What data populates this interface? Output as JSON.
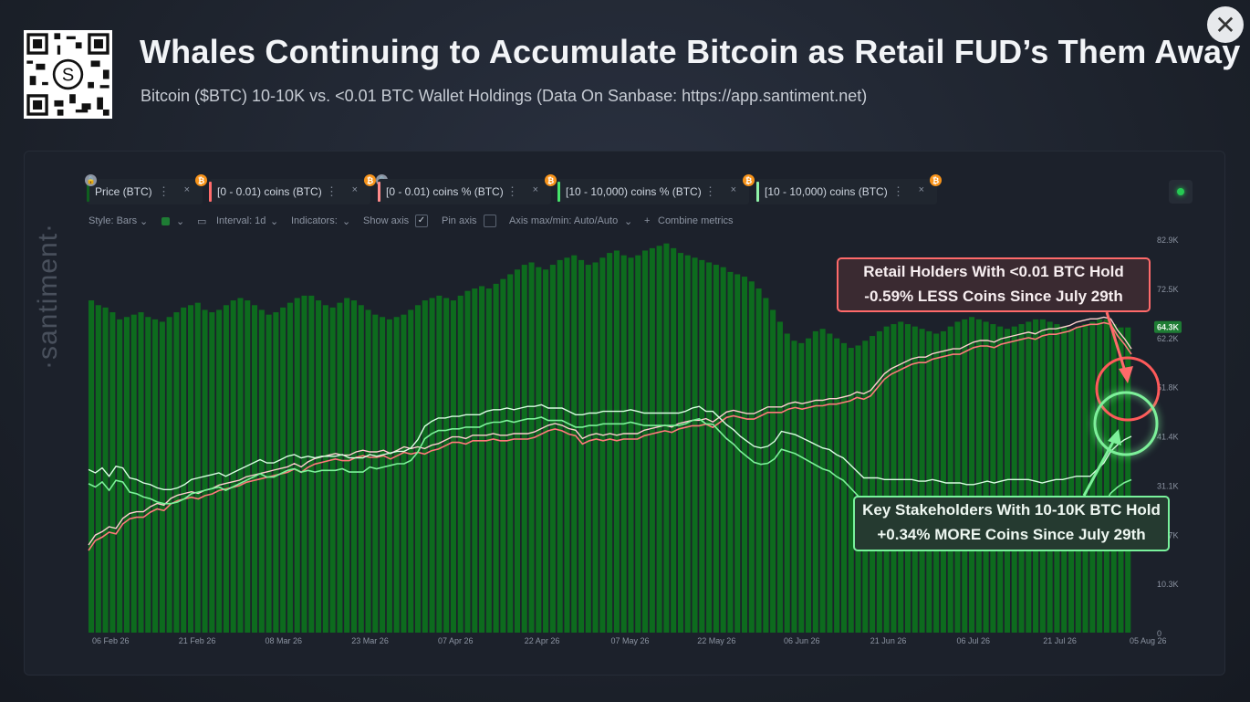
{
  "header": {
    "title": "Whales Continuing to Accumulate Bitcoin as Retail FUD’s Them Away",
    "subtitle": "Bitcoin ($BTC) 10-10K vs. <0.01 BTC Wallet Holdings (Data On Sanbase: https://app.santiment.net)",
    "close_label": "✕",
    "qr_center": "S"
  },
  "watermark": "·santiment·",
  "metrics": [
    {
      "label": "Price (BTC)",
      "color": "#0f5f1f",
      "locked": true
    },
    {
      "label": "[0 - 0.01) coins (BTC)",
      "color": "#ff6b6b",
      "locked": false
    },
    {
      "label": "[0 - 0.01) coins % (BTC)",
      "color": "#ff8a8a",
      "locked": true
    },
    {
      "label": "[10 - 10,000) coins % (BTC)",
      "color": "#46e36a",
      "locked": false
    },
    {
      "label": "[10 - 10,000) coins (BTC)",
      "color": "#8ff2a8",
      "locked": false
    }
  ],
  "options": {
    "style": "Style: Bars",
    "interval": "Interval: 1d",
    "indicators": "Indicators:",
    "show_axis": "Show axis",
    "pin_axis": "Pin axis",
    "axis_range": "Axis max/min: Auto/Auto",
    "combine": "Combine metrics"
  },
  "annotations": {
    "retail_line1": "Retail Holders With <0.01 BTC Hold",
    "retail_line2": "-0.59% LESS Coins Since July 29th",
    "whale_line1": "Key Stakeholders With 10-10K BTC Hold",
    "whale_line2": "+0.34% MORE Coins Since July 29th"
  },
  "colors": {
    "price_bars": "#0d6b1e",
    "retail": "#ff7a7a",
    "whale": "#7df09a",
    "price_tag": "#1e7c34"
  },
  "chart_data": {
    "type": "bar",
    "x_ticks": [
      "06 Feb 26",
      "21 Feb 26",
      "08 Mar 26",
      "23 Mar 26",
      "07 Apr 26",
      "22 Apr 26",
      "07 May 26",
      "22 May 26",
      "06 Jun 26",
      "21 Jun 26",
      "06 Jul 26",
      "21 Jul 26",
      "05 Aug 26"
    ],
    "y_ticks": [
      "82.9K",
      "72.5K",
      "62.2K",
      "51.8K",
      "41.4K",
      "31.1K",
      "20.7K",
      "10.3K",
      "0"
    ],
    "ylim": [
      0,
      82900
    ],
    "price_tag": "64.3K",
    "price_series": {
      "name": "Price (BTC)",
      "values": [
        70000,
        69000,
        68500,
        67500,
        66000,
        66500,
        67000,
        67500,
        66500,
        66000,
        65500,
        66500,
        67500,
        68500,
        69000,
        69500,
        68000,
        67500,
        68000,
        69000,
        70000,
        70500,
        70000,
        69000,
        68000,
        67000,
        67500,
        68500,
        69500,
        70500,
        71000,
        71000,
        70000,
        69000,
        68500,
        69500,
        70500,
        70000,
        69000,
        68000,
        67000,
        66500,
        66000,
        66500,
        67000,
        68000,
        69000,
        70000,
        70500,
        71000,
        70500,
        70000,
        71000,
        72000,
        72500,
        73000,
        72500,
        73500,
        74500,
        75500,
        76500,
        77500,
        78000,
        77000,
        76500,
        77500,
        78500,
        79000,
        79500,
        78500,
        77500,
        78000,
        79000,
        80000,
        80500,
        79500,
        79000,
        79500,
        80500,
        81000,
        81500,
        82000,
        81000,
        80000,
        79500,
        79000,
        78500,
        78000,
        77500,
        77000,
        76000,
        75500,
        75000,
        74000,
        72500,
        70500,
        68000,
        65500,
        63000,
        61500,
        61000,
        62000,
        63500,
        64000,
        63000,
        62000,
        61000,
        60000,
        60500,
        61500,
        62500,
        63500,
        64500,
        65000,
        65500,
        65000,
        64500,
        64000,
        63500,
        63000,
        63500,
        64500,
        65500,
        66000,
        66500,
        66000,
        65500,
        65000,
        64500,
        64000,
        64500,
        65000,
        65500,
        66000,
        66000,
        65500,
        65000,
        64500,
        64000,
        64500,
        65000,
        65500,
        66000,
        66000,
        65000,
        64300,
        64300
      ]
    },
    "series": [
      {
        "name": "[0 - 0.01) coins (BTC)",
        "values": [
          0.0,
          0.06,
          0.08,
          0.11,
          0.1,
          0.16,
          0.19,
          0.2,
          0.2,
          0.23,
          0.25,
          0.24,
          0.28,
          0.3,
          0.31,
          0.32,
          0.31,
          0.33,
          0.34,
          0.36,
          0.37,
          0.38,
          0.39,
          0.41,
          0.42,
          0.43,
          0.44,
          0.45,
          0.46,
          0.47,
          0.49,
          0.47,
          0.5,
          0.52,
          0.53,
          0.54,
          0.55,
          0.54,
          0.54,
          0.56,
          0.57,
          0.56,
          0.56,
          0.57,
          0.55,
          0.57,
          0.59,
          0.58,
          0.59,
          0.58,
          0.6,
          0.61,
          0.63,
          0.65,
          0.65,
          0.64,
          0.66,
          0.66,
          0.66,
          0.67,
          0.66,
          0.66,
          0.67,
          0.67,
          0.67,
          0.68,
          0.7,
          0.72,
          0.73,
          0.72,
          0.7,
          0.69,
          0.64,
          0.66,
          0.67,
          0.66,
          0.67,
          0.66,
          0.67,
          0.67,
          0.67,
          0.69,
          0.7,
          0.71,
          0.72,
          0.71,
          0.73,
          0.74,
          0.75,
          0.75,
          0.76,
          0.74,
          0.77,
          0.8,
          0.81,
          0.8,
          0.79,
          0.79,
          0.81,
          0.83,
          0.83,
          0.83,
          0.85,
          0.86,
          0.85,
          0.86,
          0.87,
          0.87,
          0.88,
          0.88,
          0.89,
          0.9,
          0.92,
          0.91,
          0.93,
          0.98,
          1.03,
          1.06,
          1.08,
          1.1,
          1.12,
          1.13,
          1.13,
          1.15,
          1.16,
          1.17,
          1.18,
          1.18,
          1.2,
          1.22,
          1.23,
          1.23,
          1.22,
          1.24,
          1.25,
          1.26,
          1.27,
          1.28,
          1.27,
          1.29,
          1.3,
          1.3,
          1.31,
          1.32,
          1.34,
          1.35,
          1.36,
          1.36,
          1.37,
          1.36,
          1.29,
          1.24,
          1.18
        ]
      },
      {
        "name": "[10 - 10,000) coins (BTC)",
        "values": [
          0.47,
          0.45,
          0.48,
          0.43,
          0.49,
          0.48,
          0.42,
          0.41,
          0.39,
          0.38,
          0.36,
          0.35,
          0.35,
          0.36,
          0.38,
          0.41,
          0.42,
          0.43,
          0.44,
          0.45,
          0.43,
          0.45,
          0.47,
          0.49,
          0.51,
          0.53,
          0.51,
          0.51,
          0.53,
          0.55,
          0.56,
          0.54,
          0.55,
          0.54,
          0.55,
          0.55,
          0.55,
          0.56,
          0.54,
          0.54,
          0.54,
          0.56,
          0.55,
          0.56,
          0.57,
          0.58,
          0.58,
          0.6,
          0.65,
          0.73,
          0.76,
          0.78,
          0.78,
          0.79,
          0.79,
          0.8,
          0.8,
          0.8,
          0.82,
          0.83,
          0.83,
          0.84,
          0.83,
          0.84,
          0.85,
          0.85,
          0.86,
          0.84,
          0.84,
          0.84,
          0.82,
          0.8,
          0.8,
          0.81,
          0.81,
          0.82,
          0.82,
          0.82,
          0.82,
          0.83,
          0.82,
          0.81,
          0.81,
          0.81,
          0.81,
          0.81,
          0.81,
          0.82,
          0.84,
          0.85,
          0.82,
          0.82,
          0.78,
          0.74,
          0.71,
          0.67,
          0.64,
          0.61,
          0.6,
          0.61,
          0.64,
          0.7,
          0.69,
          0.68,
          0.66,
          0.64,
          0.62,
          0.6,
          0.59,
          0.56,
          0.54,
          0.5,
          0.46,
          0.42,
          0.42,
          0.42,
          0.41,
          0.41,
          0.41,
          0.41,
          0.41,
          0.4,
          0.4,
          0.41,
          0.4,
          0.39,
          0.39,
          0.39,
          0.38,
          0.38,
          0.39,
          0.4,
          0.39,
          0.4,
          0.41,
          0.41,
          0.41,
          0.41,
          0.4,
          0.39,
          0.4,
          0.41,
          0.41,
          0.42,
          0.43,
          0.43,
          0.43,
          0.47,
          0.51,
          0.58,
          0.62,
          0.65,
          0.67
        ]
      }
    ],
    "notes_label": "",
    "xlabel": "",
    "ylabel": "",
    "legend": "top-left",
    "grid": true
  }
}
